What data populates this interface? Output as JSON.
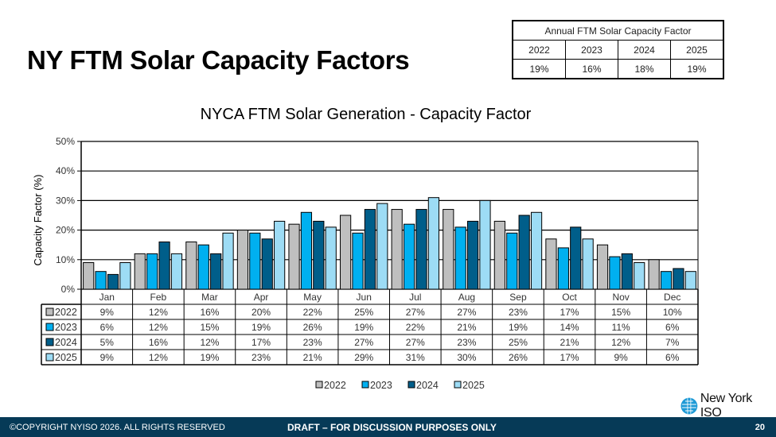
{
  "slide": {
    "title": "NY FTM Solar Capacity Factors",
    "page_number": "20",
    "copyright": "©COPYRIGHT NYISO 2026. ALL RIGHTS RESERVED",
    "draft_notice": "DRAFT – FOR DISCUSSION PURPOSES ONLY",
    "logo_text": "New York ISO"
  },
  "annual_table": {
    "title": "Annual FTM Solar Capacity Factor",
    "years": [
      "2022",
      "2023",
      "2024",
      "2025"
    ],
    "values": [
      "19%",
      "16%",
      "18%",
      "19%"
    ]
  },
  "colors": {
    "2022": "#bfbfbf",
    "2023": "#00b0f0",
    "2024": "#005e8a",
    "2025": "#9ddcf5",
    "footer": "#063a57",
    "logo": "#1e9ad6"
  },
  "chart_data": {
    "type": "bar",
    "title": "NYCA FTM Solar Generation - Capacity Factor",
    "xlabel": "",
    "ylabel": "Capacity Factor (%)",
    "ylim": [
      0,
      50
    ],
    "yticks": [
      "0%",
      "10%",
      "20%",
      "30%",
      "40%",
      "50%"
    ],
    "ytick_values": [
      0,
      10,
      20,
      30,
      40,
      50
    ],
    "grid": true,
    "legend": "bottom",
    "categories": [
      "Jan",
      "Feb",
      "Mar",
      "Apr",
      "May",
      "Jun",
      "Jul",
      "Aug",
      "Sep",
      "Oct",
      "Nov",
      "Dec"
    ],
    "series": [
      {
        "name": "2022",
        "values": [
          9,
          12,
          16,
          20,
          22,
          25,
          27,
          27,
          23,
          17,
          15,
          10
        ]
      },
      {
        "name": "2023",
        "values": [
          6,
          12,
          15,
          19,
          26,
          19,
          22,
          21,
          19,
          14,
          11,
          6
        ]
      },
      {
        "name": "2024",
        "values": [
          5,
          16,
          12,
          17,
          23,
          27,
          27,
          23,
          25,
          21,
          12,
          7
        ]
      },
      {
        "name": "2025",
        "values": [
          9,
          12,
          19,
          23,
          21,
          29,
          31,
          30,
          26,
          17,
          9,
          6
        ]
      }
    ],
    "data_table_labels": [
      [
        "9%",
        "12%",
        "16%",
        "20%",
        "22%",
        "25%",
        "27%",
        "27%",
        "23%",
        "17%",
        "15%",
        "10%"
      ],
      [
        "6%",
        "12%",
        "15%",
        "19%",
        "26%",
        "19%",
        "22%",
        "21%",
        "19%",
        "14%",
        "11%",
        "6%"
      ],
      [
        "5%",
        "16%",
        "12%",
        "17%",
        "23%",
        "27%",
        "27%",
        "23%",
        "25%",
        "21%",
        "12%",
        "7%"
      ],
      [
        "9%",
        "12%",
        "19%",
        "23%",
        "21%",
        "29%",
        "31%",
        "30%",
        "26%",
        "17%",
        "9%",
        "6%"
      ]
    ]
  }
}
